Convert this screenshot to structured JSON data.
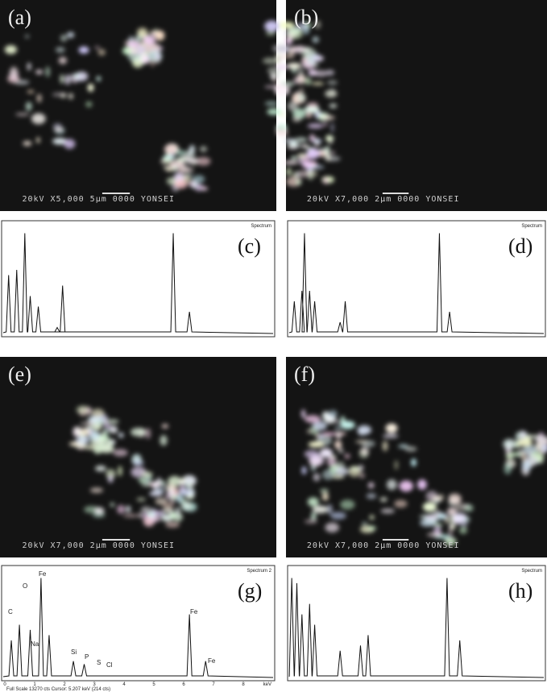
{
  "panels": [
    {
      "label": "(a)",
      "info": "20kV  X5,000  5µm 0000 YONSEI"
    },
    {
      "label": "(b)",
      "info": "20kV  X7,000  2µm 0000 YONSEI"
    },
    {
      "label": "(c)",
      "title": "Spectrum"
    },
    {
      "label": "(d)",
      "title": "Spectrum"
    },
    {
      "label": "(e)",
      "info": "20kV  X7,000  2µm 0000 YONSEI"
    },
    {
      "label": "(f)",
      "info": "20kV  X7,000  2µm 0000 YONSEI"
    },
    {
      "label": "(g)",
      "title": "Spectrum 2",
      "peaks": [
        "C",
        "O",
        "Fe",
        "Na",
        "Si",
        "P",
        "S",
        "Cl",
        "Fe",
        "Fe"
      ],
      "ticks": [
        "0",
        "1",
        "2",
        "3",
        "4",
        "5",
        "6",
        "7",
        "8"
      ],
      "unit": "keV",
      "footer": "Full Scale 13270 cts  Cursor: 5.207 keV (214 cts)"
    },
    {
      "label": "(h)",
      "title": "Spectrum"
    }
  ]
}
